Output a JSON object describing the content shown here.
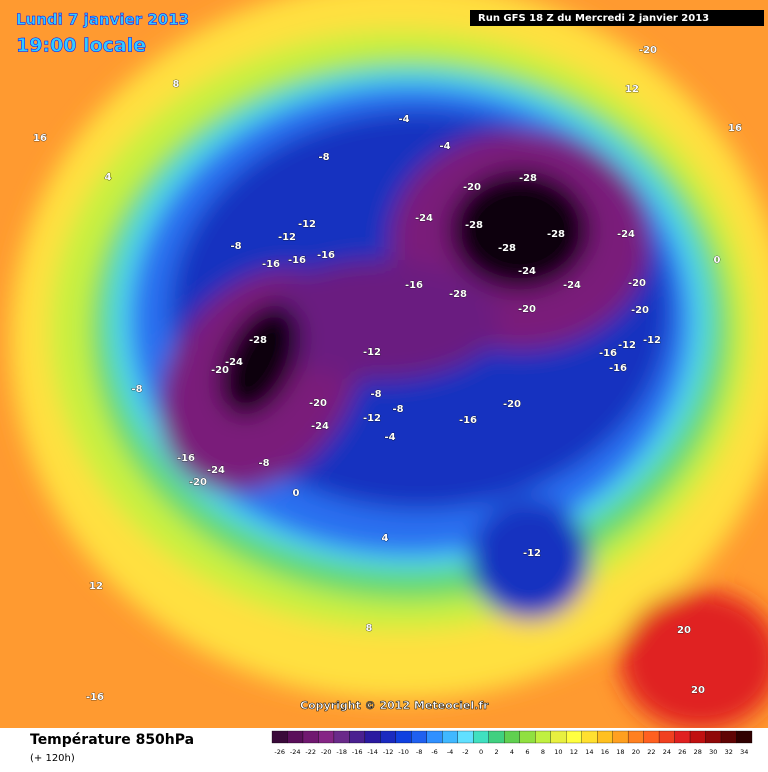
{
  "header": {
    "date": "Lundi 7 janvier 2013",
    "time": "19:00 locale",
    "run": "Run GFS 18 Z du Mercredi 2 janvier 2013"
  },
  "footer": {
    "title": "Température 850hPa",
    "lead": "(+ 120h)",
    "copyright": "Copyright © 2012 Meteociel.fr"
  },
  "legend": {
    "ticks": [
      -26,
      -24,
      -22,
      -20,
      -18,
      -16,
      -14,
      -12,
      -10,
      -8,
      -6,
      -4,
      -2,
      0,
      2,
      4,
      6,
      8,
      10,
      12,
      14,
      16,
      18,
      20,
      22,
      24,
      26,
      28,
      30,
      32,
      34
    ],
    "colors": [
      "#3a0a3a",
      "#5a0f5a",
      "#701870",
      "#852585",
      "#6a2a8a",
      "#4a2090",
      "#2a1aa0",
      "#1a2ac0",
      "#1040e0",
      "#2060f0",
      "#3090ff",
      "#40b8ff",
      "#60e0ff",
      "#40e0c0",
      "#40d080",
      "#60d050",
      "#90e040",
      "#c0f040",
      "#e8f040",
      "#ffff40",
      "#ffe030",
      "#ffc020",
      "#ffa020",
      "#ff8020",
      "#ff6020",
      "#f04020",
      "#e02020",
      "#c01010",
      "#900808",
      "#600404",
      "#300000"
    ]
  },
  "map": {
    "labels": [
      -28,
      -24,
      -20,
      -28,
      -20,
      -24,
      -28,
      -28,
      -28,
      -24,
      -24,
      -24,
      -28,
      -20,
      -20,
      -20,
      -16,
      -16,
      -16,
      -16,
      -12,
      -12,
      -12,
      -12,
      -12,
      -16,
      -16,
      -20,
      -16,
      -12,
      -8,
      -8,
      -8,
      -8,
      -4,
      -4,
      -4,
      -20,
      -24,
      -12,
      -16,
      -24,
      -20,
      -8,
      0,
      4,
      8,
      12,
      16,
      16,
      -20,
      20,
      20,
      -16,
      12,
      8,
      4,
      -8,
      0
    ]
  }
}
